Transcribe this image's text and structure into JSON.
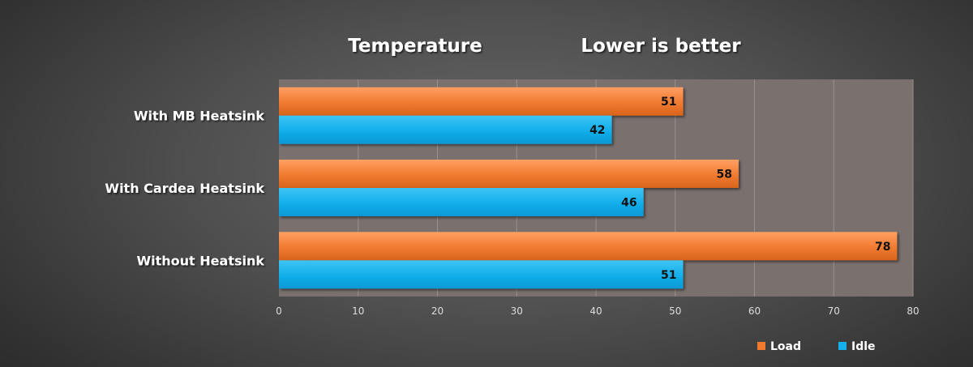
{
  "chart_data": {
    "type": "bar",
    "orientation": "horizontal",
    "title": "Temperature",
    "subtitle": "Lower is better",
    "categories": [
      "With MB Heatsink",
      "With Cardea Heatsink",
      "Without Heatsink"
    ],
    "series": [
      {
        "name": "Load",
        "color": "#f07a30",
        "values": [
          51,
          58,
          78
        ]
      },
      {
        "name": "Idle",
        "color": "#14b0ec",
        "values": [
          42,
          46,
          51
        ]
      }
    ],
    "xlim": [
      0,
      80
    ],
    "xticks": [
      0,
      10,
      20,
      30,
      40,
      50,
      60,
      70,
      80
    ],
    "grid": true,
    "legend": "bottom-right",
    "plot_background": "#7a716e"
  }
}
